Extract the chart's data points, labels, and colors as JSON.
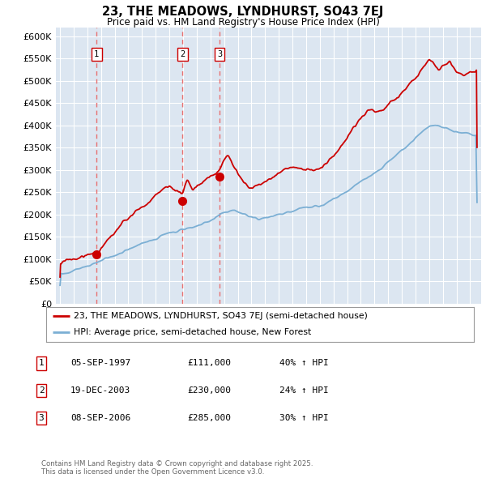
{
  "title1": "23, THE MEADOWS, LYNDHURST, SO43 7EJ",
  "title2": "Price paid vs. HM Land Registry's House Price Index (HPI)",
  "legend_label1": "23, THE MEADOWS, LYNDHURST, SO43 7EJ (semi-detached house)",
  "legend_label2": "HPI: Average price, semi-detached house, New Forest",
  "sale_info": [
    {
      "label": "1",
      "date": "05-SEP-1997",
      "price": "£111,000",
      "change": "40% ↑ HPI",
      "year": 1997.68,
      "price_val": 111000
    },
    {
      "label": "2",
      "date": "19-DEC-2003",
      "price": "£230,000",
      "change": "24% ↑ HPI",
      "year": 2003.96,
      "price_val": 230000
    },
    {
      "label": "3",
      "date": "08-SEP-2006",
      "price": "£285,000",
      "change": "30% ↑ HPI",
      "year": 2006.68,
      "price_val": 285000
    }
  ],
  "copyright": "Contains HM Land Registry data © Crown copyright and database right 2025.\nThis data is licensed under the Open Government Licence v3.0.",
  "ylim": [
    0,
    620000
  ],
  "yticks": [
    0,
    50000,
    100000,
    150000,
    200000,
    250000,
    300000,
    350000,
    400000,
    450000,
    500000,
    550000,
    600000
  ],
  "red_color": "#cc0000",
  "blue_color": "#7bafd4",
  "vline_color": "#e87070",
  "bg_color": "#dce6f1",
  "grid_color": "#ffffff"
}
